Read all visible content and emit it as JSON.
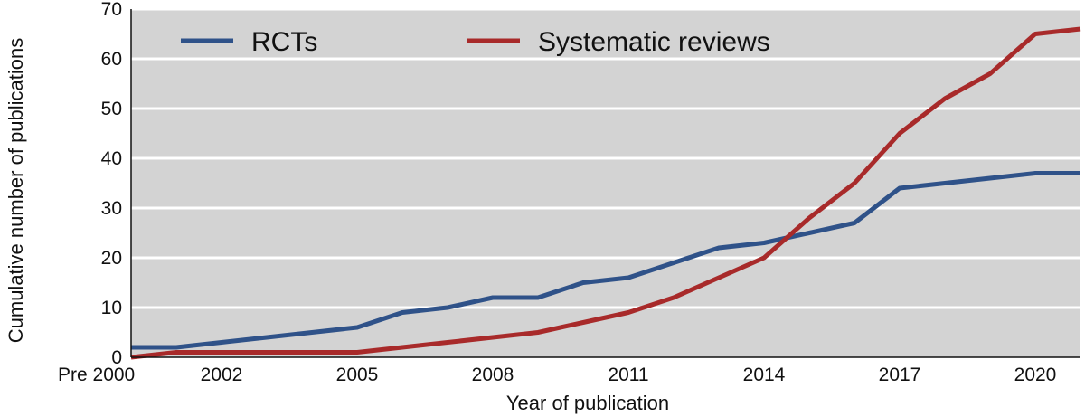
{
  "chart_data": {
    "type": "line",
    "xlabel": "Year of publication",
    "ylabel": "Cumulative number of publications",
    "ylim": [
      0,
      70
    ],
    "yticks": [
      0,
      10,
      20,
      30,
      40,
      50,
      60,
      70
    ],
    "xticks": [
      {
        "x": 2000,
        "label": "Pre 2000"
      },
      {
        "x": 2002,
        "label": "2002"
      },
      {
        "x": 2005,
        "label": "2005"
      },
      {
        "x": 2008,
        "label": "2008"
      },
      {
        "x": 2011,
        "label": "2011"
      },
      {
        "x": 2014,
        "label": "2014"
      },
      {
        "x": 2017,
        "label": "2017"
      },
      {
        "x": 2020,
        "label": "2020"
      }
    ],
    "xlim": [
      2000,
      2021
    ],
    "grid": true,
    "legend_position": "top",
    "series": [
      {
        "name": "RCTs",
        "color": "#2f5289",
        "points": [
          [
            2000,
            2
          ],
          [
            2001,
            2
          ],
          [
            2002,
            3
          ],
          [
            2003,
            4
          ],
          [
            2004,
            5
          ],
          [
            2005,
            6
          ],
          [
            2006,
            9
          ],
          [
            2007,
            10
          ],
          [
            2008,
            12
          ],
          [
            2009,
            12
          ],
          [
            2010,
            15
          ],
          [
            2011,
            16
          ],
          [
            2012,
            19
          ],
          [
            2013,
            22
          ],
          [
            2014,
            23
          ],
          [
            2015,
            25
          ],
          [
            2016,
            27
          ],
          [
            2017,
            34
          ],
          [
            2018,
            35
          ],
          [
            2019,
            36
          ],
          [
            2020,
            37
          ],
          [
            2021,
            37
          ]
        ]
      },
      {
        "name": "Systematic reviews",
        "color": "#a82a2a",
        "points": [
          [
            2000,
            0
          ],
          [
            2001,
            1
          ],
          [
            2002,
            1
          ],
          [
            2003,
            1
          ],
          [
            2004,
            1
          ],
          [
            2005,
            1
          ],
          [
            2006,
            2
          ],
          [
            2007,
            3
          ],
          [
            2008,
            4
          ],
          [
            2009,
            5
          ],
          [
            2010,
            7
          ],
          [
            2011,
            9
          ],
          [
            2012,
            12
          ],
          [
            2013,
            16
          ],
          [
            2014,
            20
          ],
          [
            2015,
            28
          ],
          [
            2016,
            35
          ],
          [
            2017,
            45
          ],
          [
            2018,
            52
          ],
          [
            2019,
            57
          ],
          [
            2020,
            65
          ],
          [
            2021,
            66
          ]
        ]
      }
    ]
  }
}
